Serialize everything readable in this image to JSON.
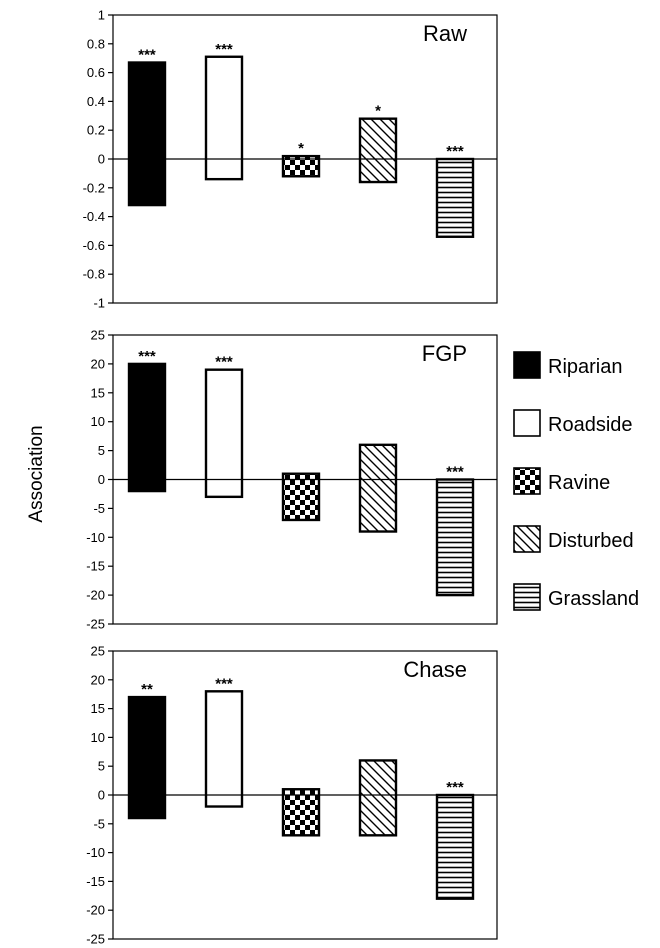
{
  "ylabel": "Association",
  "legend": [
    {
      "name": "Riparian",
      "pattern": "solid"
    },
    {
      "name": "Roadside",
      "pattern": "open"
    },
    {
      "name": "Ravine",
      "pattern": "checker"
    },
    {
      "name": "Disturbed",
      "pattern": "diagonal"
    },
    {
      "name": "Grassland",
      "pattern": "horizontal"
    }
  ],
  "chart_data": [
    {
      "type": "bar",
      "title": "Raw",
      "ylim": [
        -1,
        1
      ],
      "ticks": [
        "1",
        "0.8",
        "0.6",
        "0.4",
        "0.2",
        "0",
        "-0.2",
        "-0.4",
        "-0.6",
        "-0.8",
        "-1"
      ],
      "categories": [
        "Riparian",
        "Roadside",
        "Ravine",
        "Disturbed",
        "Grassland"
      ],
      "series": [
        {
          "name": "positive",
          "values": [
            0.67,
            0.71,
            0.02,
            0.28,
            0
          ]
        },
        {
          "name": "negative",
          "values": [
            -0.32,
            -0.14,
            -0.12,
            -0.16,
            -0.54
          ]
        }
      ],
      "significance": [
        "***",
        "***",
        "*",
        "*",
        "***"
      ]
    },
    {
      "type": "bar",
      "title": "FGP",
      "ylim": [
        -25,
        25
      ],
      "ticks": [
        "25",
        "20",
        "15",
        "10",
        "5",
        "0",
        "-5",
        "-10",
        "-15",
        "-20",
        "-25"
      ],
      "categories": [
        "Riparian",
        "Roadside",
        "Ravine",
        "Disturbed",
        "Grassland"
      ],
      "series": [
        {
          "name": "positive",
          "values": [
            20,
            19,
            1,
            6,
            0
          ]
        },
        {
          "name": "negative",
          "values": [
            -2,
            -3,
            -7,
            -9,
            -20
          ]
        }
      ],
      "significance": [
        "***",
        "***",
        "",
        "",
        "***"
      ]
    },
    {
      "type": "bar",
      "title": "Chase",
      "ylim": [
        -25,
        25
      ],
      "ticks": [
        "25",
        "20",
        "15",
        "10",
        "5",
        "0",
        "-5",
        "-10",
        "-15",
        "-20",
        "-25"
      ],
      "categories": [
        "Riparian",
        "Roadside",
        "Ravine",
        "Disturbed",
        "Grassland"
      ],
      "series": [
        {
          "name": "positive",
          "values": [
            17,
            18,
            1,
            6,
            0
          ]
        },
        {
          "name": "negative",
          "values": [
            -4,
            -2,
            -7,
            -7,
            -18
          ]
        }
      ],
      "significance": [
        "**",
        "***",
        "",
        "",
        "***"
      ]
    }
  ]
}
